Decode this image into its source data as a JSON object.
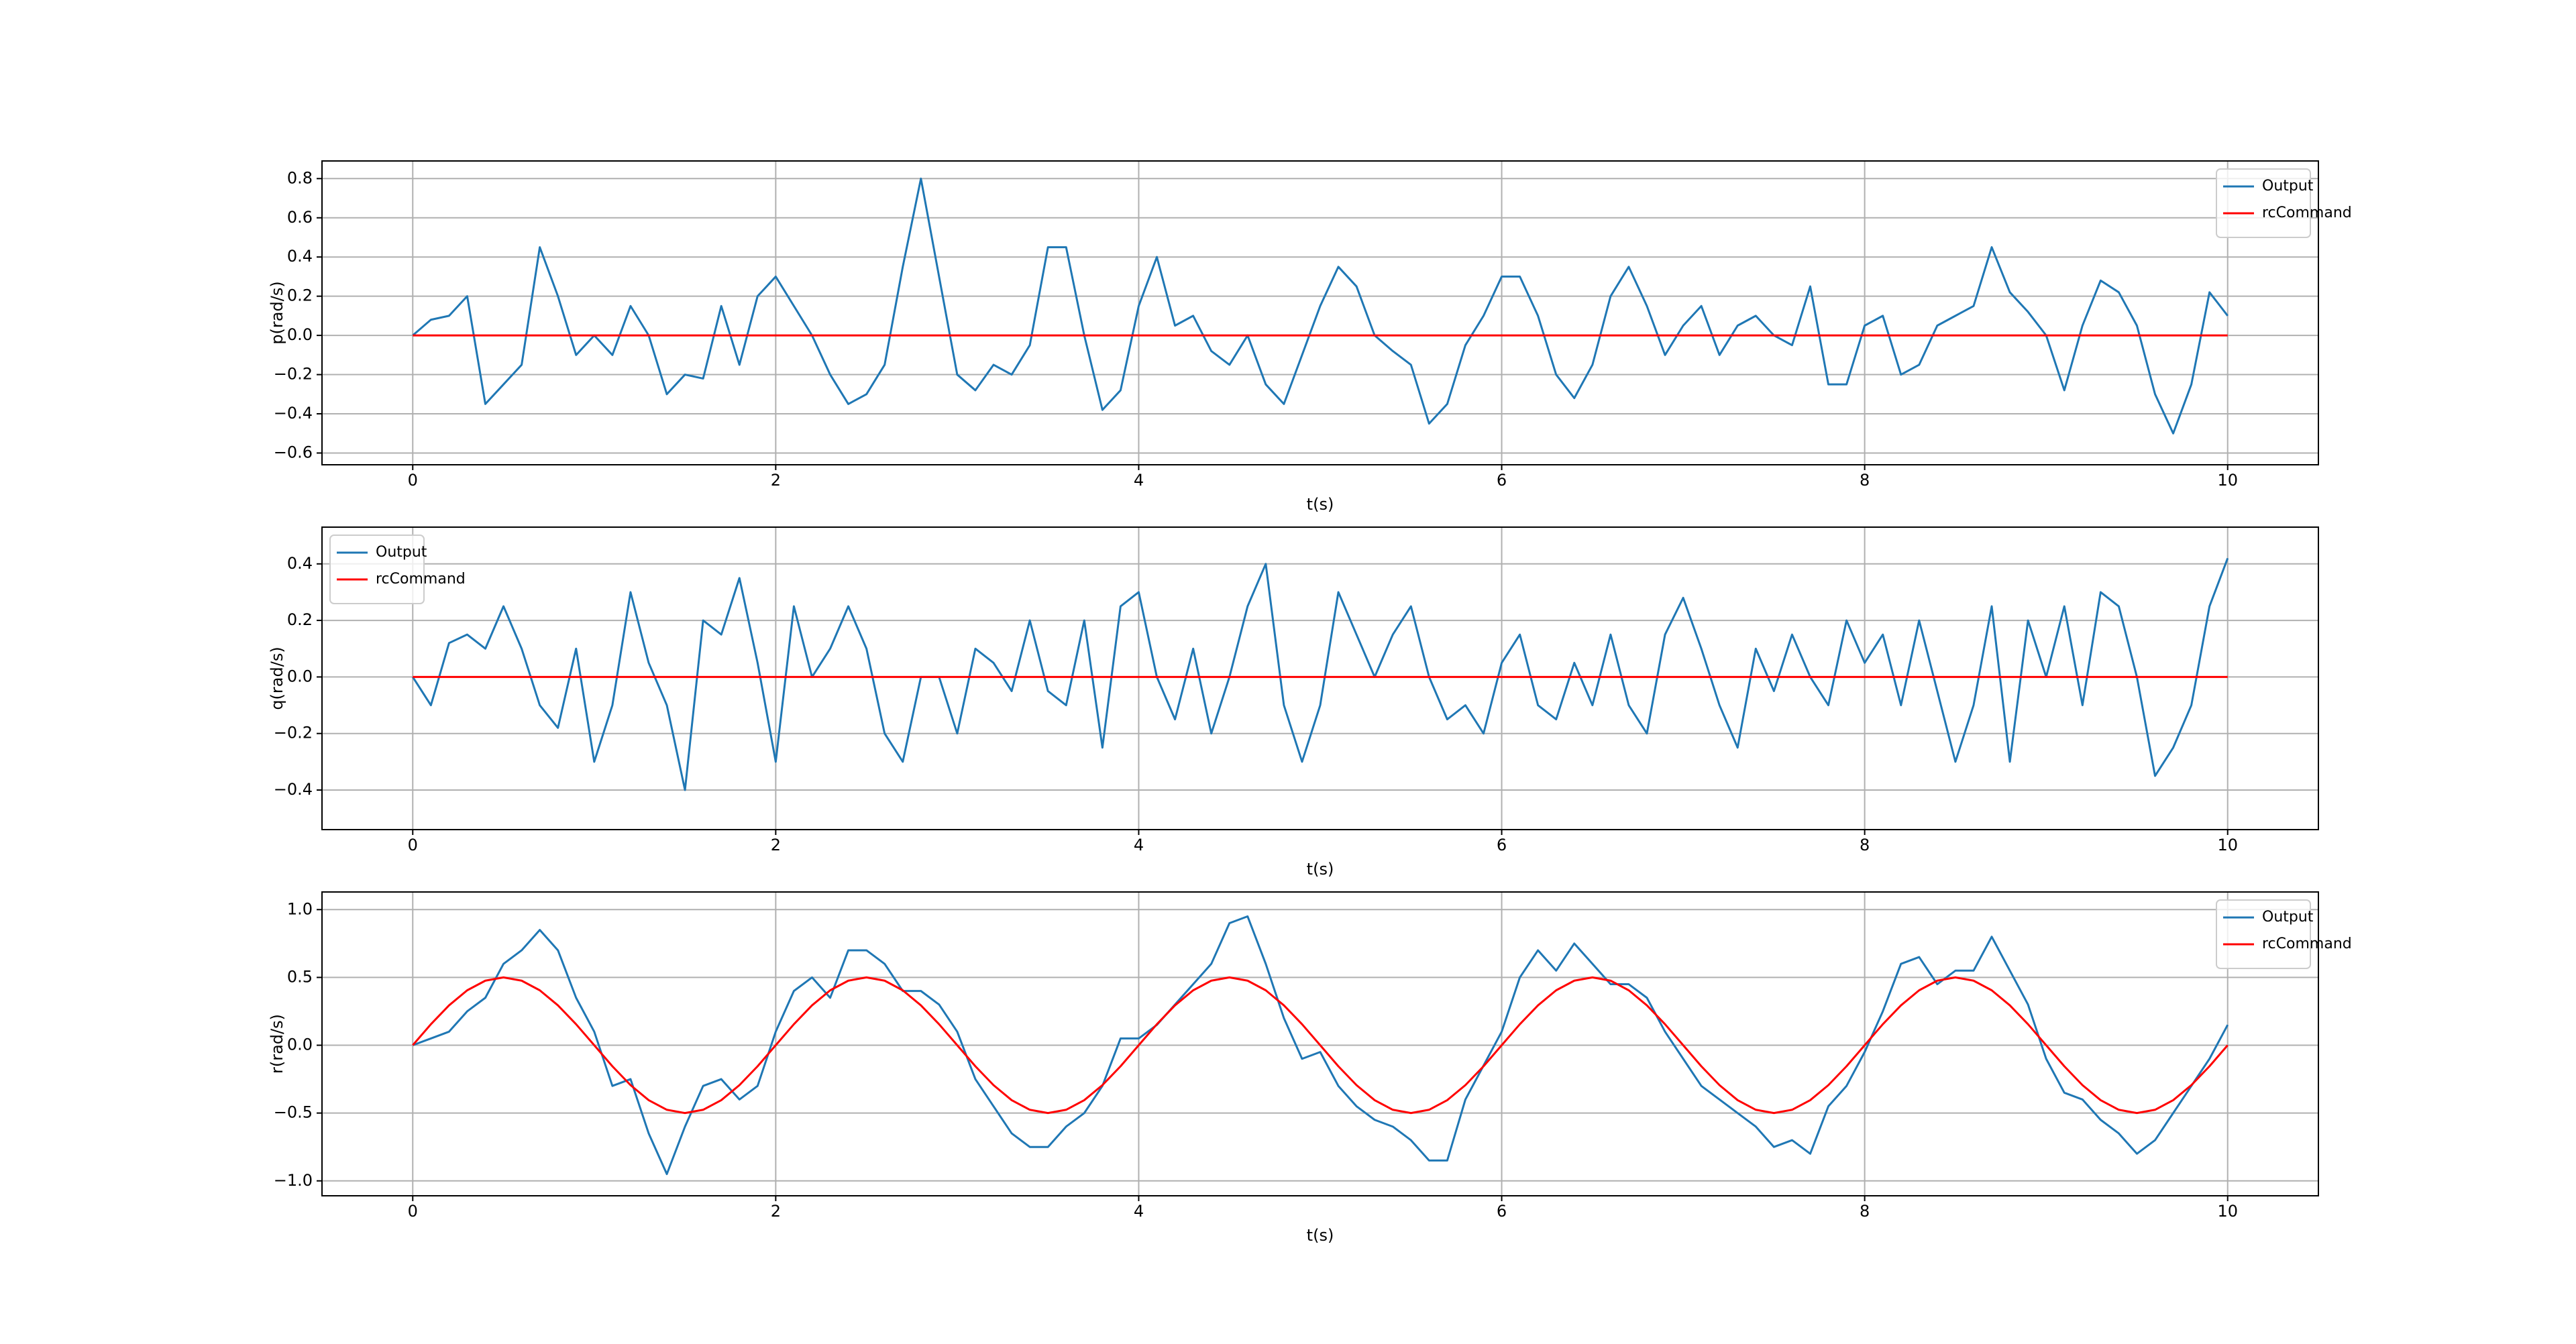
{
  "chart_data": [
    {
      "type": "line",
      "xlabel": "t(s)",
      "ylabel": "p(rad/s)",
      "legend": "upper right",
      "grid": true,
      "xlim": [
        -0.5,
        10.5
      ],
      "xticks": [
        0,
        2,
        4,
        6,
        8,
        10
      ],
      "ylim": [
        -0.66,
        0.89
      ],
      "yticks": [
        {
          "value": -0.6,
          "label": "−0.6"
        },
        {
          "value": -0.4,
          "label": "−0.4"
        },
        {
          "value": -0.2,
          "label": "−0.2"
        },
        {
          "value": 0,
          "label": "0.0"
        },
        0.2,
        0.4,
        0.6,
        0.8
      ],
      "x": [
        0,
        0.1,
        0.2,
        0.3,
        0.4,
        0.5,
        0.6,
        0.7,
        0.8,
        0.9,
        1,
        1.1,
        1.2,
        1.3,
        1.4,
        1.5,
        1.6,
        1.7,
        1.8,
        1.9,
        2,
        2.1,
        2.2,
        2.3,
        2.4,
        2.5,
        2.6,
        2.7,
        2.8,
        2.9,
        3,
        3.1,
        3.2,
        3.3,
        3.4,
        3.5,
        3.6,
        3.7,
        3.8,
        3.9,
        4,
        4.1,
        4.2,
        4.3,
        4.4,
        4.5,
        4.6,
        4.7,
        4.8,
        4.9,
        5,
        5.1,
        5.2,
        5.3,
        5.4,
        5.5,
        5.6,
        5.7,
        5.8,
        5.9,
        6,
        6.1,
        6.2,
        6.3,
        6.4,
        6.5,
        6.6,
        6.7,
        6.8,
        6.9,
        7,
        7.1,
        7.2,
        7.3,
        7.4,
        7.5,
        7.6,
        7.7,
        7.8,
        7.9,
        8,
        8.1,
        8.2,
        8.3,
        8.4,
        8.5,
        8.6,
        8.7,
        8.8,
        8.9,
        9,
        9.1,
        9.2,
        9.3,
        9.4,
        9.5,
        9.6,
        9.7,
        9.8,
        9.9,
        10
      ],
      "series": [
        {
          "name": "Output",
          "color": "#1f77b4",
          "values": [
            0,
            0.08,
            0.1,
            0.2,
            -0.35,
            -0.25,
            -0.15,
            0.45,
            0.2,
            -0.1,
            0,
            -0.1,
            0.15,
            0,
            -0.3,
            -0.2,
            -0.22,
            0.15,
            -0.15,
            0.2,
            0.3,
            0.15,
            0,
            -0.2,
            -0.35,
            -0.3,
            -0.15,
            0.35,
            0.8,
            0.3,
            -0.2,
            -0.28,
            -0.15,
            -0.2,
            -0.05,
            0.45,
            0.45,
            0,
            -0.38,
            -0.28,
            0.15,
            0.4,
            0.05,
            0.1,
            -0.08,
            -0.15,
            0,
            -0.25,
            -0.35,
            -0.1,
            0.15,
            0.35,
            0.25,
            0,
            -0.08,
            -0.15,
            -0.45,
            -0.35,
            -0.05,
            0.1,
            0.3,
            0.3,
            0.1,
            -0.2,
            -0.32,
            -0.15,
            0.2,
            0.35,
            0.15,
            -0.1,
            0.05,
            0.15,
            -0.1,
            0.05,
            0.1,
            0,
            -0.05,
            0.25,
            -0.25,
            -0.25,
            0.05,
            0.1,
            -0.2,
            -0.15,
            0.05,
            0.1,
            0.15,
            0.45,
            0.22,
            0.12,
            0,
            -0.28,
            0.05,
            0.28,
            0.22,
            0.05,
            -0.3,
            -0.5,
            -0.25,
            0.22,
            0.1
          ]
        },
        {
          "name": "rcCommand",
          "color": "#ff0000",
          "values": [
            0,
            0,
            0,
            0,
            0,
            0,
            0,
            0,
            0,
            0,
            0,
            0,
            0,
            0,
            0,
            0,
            0,
            0,
            0,
            0,
            0,
            0,
            0,
            0,
            0,
            0,
            0,
            0,
            0,
            0,
            0,
            0,
            0,
            0,
            0,
            0,
            0,
            0,
            0,
            0,
            0,
            0,
            0,
            0,
            0,
            0,
            0,
            0,
            0,
            0,
            0,
            0,
            0,
            0,
            0,
            0,
            0,
            0,
            0,
            0,
            0,
            0,
            0,
            0,
            0,
            0,
            0,
            0,
            0,
            0,
            0,
            0,
            0,
            0,
            0,
            0,
            0,
            0,
            0,
            0,
            0,
            0,
            0,
            0,
            0,
            0,
            0,
            0,
            0,
            0,
            0,
            0,
            0,
            0,
            0,
            0,
            0,
            0,
            0,
            0,
            0
          ]
        }
      ]
    },
    {
      "type": "line",
      "xlabel": "t(s)",
      "ylabel": "q(rad/s)",
      "legend": "upper left",
      "grid": true,
      "xlim": [
        -0.5,
        10.5
      ],
      "xticks": [
        0,
        2,
        4,
        6,
        8,
        10
      ],
      "ylim": [
        -0.54,
        0.53
      ],
      "yticks": [
        {
          "value": -0.4,
          "label": "−0.4"
        },
        {
          "value": -0.2,
          "label": "−0.2"
        },
        {
          "value": 0,
          "label": "0.0"
        },
        0.2,
        0.4
      ],
      "x": [
        0,
        0.1,
        0.2,
        0.3,
        0.4,
        0.5,
        0.6,
        0.7,
        0.8,
        0.9,
        1,
        1.1,
        1.2,
        1.3,
        1.4,
        1.5,
        1.6,
        1.7,
        1.8,
        1.9,
        2,
        2.1,
        2.2,
        2.3,
        2.4,
        2.5,
        2.6,
        2.7,
        2.8,
        2.9,
        3,
        3.1,
        3.2,
        3.3,
        3.4,
        3.5,
        3.6,
        3.7,
        3.8,
        3.9,
        4,
        4.1,
        4.2,
        4.3,
        4.4,
        4.5,
        4.6,
        4.7,
        4.8,
        4.9,
        5,
        5.1,
        5.2,
        5.3,
        5.4,
        5.5,
        5.6,
        5.7,
        5.8,
        5.9,
        6,
        6.1,
        6.2,
        6.3,
        6.4,
        6.5,
        6.6,
        6.7,
        6.8,
        6.9,
        7,
        7.1,
        7.2,
        7.3,
        7.4,
        7.5,
        7.6,
        7.7,
        7.8,
        7.9,
        8,
        8.1,
        8.2,
        8.3,
        8.4,
        8.5,
        8.6,
        8.7,
        8.8,
        8.9,
        9,
        9.1,
        9.2,
        9.3,
        9.4,
        9.5,
        9.6,
        9.7,
        9.8,
        9.9,
        10
      ],
      "series": [
        {
          "name": "Output",
          "color": "#1f77b4",
          "values": [
            0,
            -0.1,
            0.12,
            0.15,
            0.1,
            0.25,
            0.1,
            -0.1,
            -0.18,
            0.1,
            -0.3,
            -0.1,
            0.3,
            0.05,
            -0.1,
            -0.4,
            0.2,
            0.15,
            0.35,
            0.05,
            -0.3,
            0.25,
            0,
            0.1,
            0.25,
            0.1,
            -0.2,
            -0.3,
            0,
            0,
            -0.2,
            0.1,
            0.05,
            -0.05,
            0.2,
            -0.05,
            -0.1,
            0.2,
            -0.25,
            0.25,
            0.3,
            0,
            -0.15,
            0.1,
            -0.2,
            0,
            0.25,
            0.4,
            -0.1,
            -0.3,
            -0.1,
            0.3,
            0.15,
            0,
            0.15,
            0.25,
            0,
            -0.15,
            -0.1,
            -0.2,
            0.05,
            0.15,
            -0.1,
            -0.15,
            0.05,
            -0.1,
            0.15,
            -0.1,
            -0.2,
            0.15,
            0.28,
            0.1,
            -0.1,
            -0.25,
            0.1,
            -0.05,
            0.15,
            0,
            -0.1,
            0.2,
            0.05,
            0.15,
            -0.1,
            0.2,
            -0.05,
            -0.3,
            -0.1,
            0.25,
            -0.3,
            0.2,
            0,
            0.25,
            -0.1,
            0.3,
            0.25,
            0,
            -0.35,
            -0.25,
            -0.1,
            0.25,
            0.42
          ]
        },
        {
          "name": "rcCommand",
          "color": "#ff0000",
          "values": [
            0,
            0,
            0,
            0,
            0,
            0,
            0,
            0,
            0,
            0,
            0,
            0,
            0,
            0,
            0,
            0,
            0,
            0,
            0,
            0,
            0,
            0,
            0,
            0,
            0,
            0,
            0,
            0,
            0,
            0,
            0,
            0,
            0,
            0,
            0,
            0,
            0,
            0,
            0,
            0,
            0,
            0,
            0,
            0,
            0,
            0,
            0,
            0,
            0,
            0,
            0,
            0,
            0,
            0,
            0,
            0,
            0,
            0,
            0,
            0,
            0,
            0,
            0,
            0,
            0,
            0,
            0,
            0,
            0,
            0,
            0,
            0,
            0,
            0,
            0,
            0,
            0,
            0,
            0,
            0,
            0,
            0,
            0,
            0,
            0,
            0,
            0,
            0,
            0,
            0,
            0,
            0,
            0,
            0,
            0,
            0,
            0,
            0,
            0,
            0,
            0
          ]
        }
      ]
    },
    {
      "type": "line",
      "xlabel": "t(s)",
      "ylabel": "r(rad/s)",
      "legend": "upper right",
      "grid": true,
      "xlim": [
        -0.5,
        10.5
      ],
      "xticks": [
        0,
        2,
        4,
        6,
        8,
        10
      ],
      "ylim": [
        -1.11,
        1.13
      ],
      "yticks": [
        {
          "value": -1,
          "label": "−1.0"
        },
        {
          "value": -0.5,
          "label": "−0.5"
        },
        {
          "value": 0,
          "label": "0.0"
        },
        0.5,
        {
          "value": 1,
          "label": "1.0"
        }
      ],
      "x": [
        0,
        0.1,
        0.2,
        0.3,
        0.4,
        0.5,
        0.6,
        0.7,
        0.8,
        0.9,
        1,
        1.1,
        1.2,
        1.3,
        1.4,
        1.5,
        1.6,
        1.7,
        1.8,
        1.9,
        2,
        2.1,
        2.2,
        2.3,
        2.4,
        2.5,
        2.6,
        2.7,
        2.8,
        2.9,
        3,
        3.1,
        3.2,
        3.3,
        3.4,
        3.5,
        3.6,
        3.7,
        3.8,
        3.9,
        4,
        4.1,
        4.2,
        4.3,
        4.4,
        4.5,
        4.6,
        4.7,
        4.8,
        4.9,
        5,
        5.1,
        5.2,
        5.3,
        5.4,
        5.5,
        5.6,
        5.7,
        5.8,
        5.9,
        6,
        6.1,
        6.2,
        6.3,
        6.4,
        6.5,
        6.6,
        6.7,
        6.8,
        6.9,
        7,
        7.1,
        7.2,
        7.3,
        7.4,
        7.5,
        7.6,
        7.7,
        7.8,
        7.9,
        8,
        8.1,
        8.2,
        8.3,
        8.4,
        8.5,
        8.6,
        8.7,
        8.8,
        8.9,
        9,
        9.1,
        9.2,
        9.3,
        9.4,
        9.5,
        9.6,
        9.7,
        9.8,
        9.9,
        10
      ],
      "series": [
        {
          "name": "Output",
          "color": "#1f77b4",
          "values": [
            0,
            0.05,
            0.1,
            0.25,
            0.35,
            0.6,
            0.7,
            0.85,
            0.7,
            0.35,
            0.1,
            -0.3,
            -0.25,
            -0.65,
            -0.95,
            -0.6,
            -0.3,
            -0.25,
            -0.4,
            -0.3,
            0.1,
            0.4,
            0.5,
            0.35,
            0.7,
            0.7,
            0.6,
            0.4,
            0.4,
            0.3,
            0.1,
            -0.25,
            -0.45,
            -0.65,
            -0.75,
            -0.75,
            -0.6,
            -0.5,
            -0.3,
            0.05,
            0.05,
            0.15,
            0.3,
            0.45,
            0.6,
            0.9,
            0.95,
            0.6,
            0.2,
            -0.1,
            -0.05,
            -0.3,
            -0.45,
            -0.55,
            -0.6,
            -0.7,
            -0.85,
            -0.85,
            -0.4,
            -0.15,
            0.1,
            0.5,
            0.7,
            0.55,
            0.75,
            0.6,
            0.45,
            0.45,
            0.35,
            0.1,
            -0.1,
            -0.3,
            -0.4,
            -0.5,
            -0.6,
            -0.75,
            -0.7,
            -0.8,
            -0.45,
            -0.3,
            -0.05,
            0.25,
            0.6,
            0.65,
            0.45,
            0.55,
            0.55,
            0.8,
            0.55,
            0.3,
            -0.1,
            -0.35,
            -0.4,
            -0.55,
            -0.65,
            -0.8,
            -0.7,
            -0.5,
            -0.3,
            -0.1,
            0.15
          ]
        },
        {
          "name": "rcCommand",
          "color": "#ff0000",
          "values": [
            0,
            0.155,
            0.294,
            0.405,
            0.476,
            0.5,
            0.476,
            0.405,
            0.294,
            0.155,
            0,
            -0.155,
            -0.294,
            -0.405,
            -0.476,
            -0.5,
            -0.476,
            -0.405,
            -0.294,
            -0.155,
            0,
            0.155,
            0.294,
            0.405,
            0.476,
            0.5,
            0.476,
            0.405,
            0.294,
            0.155,
            0,
            -0.155,
            -0.294,
            -0.405,
            -0.476,
            -0.5,
            -0.476,
            -0.405,
            -0.294,
            -0.155,
            0,
            0.155,
            0.294,
            0.405,
            0.476,
            0.5,
            0.476,
            0.405,
            0.294,
            0.155,
            0,
            -0.155,
            -0.294,
            -0.405,
            -0.476,
            -0.5,
            -0.476,
            -0.405,
            -0.294,
            -0.155,
            0,
            0.155,
            0.294,
            0.405,
            0.476,
            0.5,
            0.476,
            0.405,
            0.294,
            0.155,
            0,
            -0.155,
            -0.294,
            -0.405,
            -0.476,
            -0.5,
            -0.476,
            -0.405,
            -0.294,
            -0.155,
            0,
            0.155,
            0.294,
            0.405,
            0.476,
            0.5,
            0.476,
            0.405,
            0.294,
            0.155,
            0,
            -0.155,
            -0.294,
            -0.405,
            -0.476,
            -0.5,
            -0.476,
            -0.405,
            -0.294,
            -0.155,
            0
          ]
        }
      ]
    }
  ]
}
